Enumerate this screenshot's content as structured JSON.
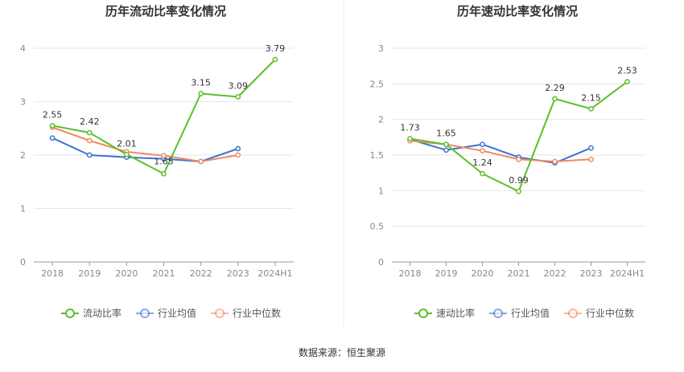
{
  "source_text": "数据来源：恒生聚源",
  "colors": {
    "main": "#5cbf2a",
    "avg": "#3c73d0",
    "median": "#f08a61",
    "grid": "#e3e6ee",
    "axis": "#999999"
  },
  "chart_data": [
    {
      "type": "line",
      "title": "历年流动比率变化情况",
      "categories": [
        "2018",
        "2019",
        "2020",
        "2021",
        "2022",
        "2023",
        "2024H1"
      ],
      "ylim": [
        0,
        4
      ],
      "yticks": [
        "0",
        "1",
        "2",
        "3",
        "4"
      ],
      "series": [
        {
          "name": "流动比率",
          "values": [
            2.55,
            2.42,
            2.01,
            1.65,
            3.15,
            3.09,
            3.79
          ],
          "labels": [
            "2.55",
            "2.42",
            "2.01",
            "1.65",
            "3.15",
            "3.09",
            "3.79"
          ]
        },
        {
          "name": "行业均值",
          "values": [
            2.32,
            2.0,
            1.96,
            1.93,
            1.88,
            2.12,
            null
          ]
        },
        {
          "name": "行业中位数",
          "values": [
            2.52,
            2.27,
            2.06,
            1.99,
            1.88,
            2.0,
            null
          ]
        }
      ]
    },
    {
      "type": "line",
      "title": "历年速动比率变化情况",
      "categories": [
        "2018",
        "2019",
        "2020",
        "2021",
        "2022",
        "2023",
        "2024H1"
      ],
      "ylim": [
        0,
        3
      ],
      "yticks": [
        "0",
        "0.5",
        "1",
        "1.5",
        "2",
        "2.5",
        "3"
      ],
      "series": [
        {
          "name": "速动比率",
          "values": [
            1.73,
            1.65,
            1.24,
            0.99,
            2.29,
            2.15,
            2.53
          ],
          "labels": [
            "1.73",
            "1.65",
            "1.24",
            "0.99",
            "2.29",
            "2.15",
            "2.53"
          ]
        },
        {
          "name": "行业均值",
          "values": [
            1.72,
            1.57,
            1.65,
            1.47,
            1.39,
            1.6,
            null
          ]
        },
        {
          "name": "行业中位数",
          "values": [
            1.7,
            1.65,
            1.56,
            1.44,
            1.41,
            1.44,
            null
          ]
        }
      ]
    }
  ]
}
